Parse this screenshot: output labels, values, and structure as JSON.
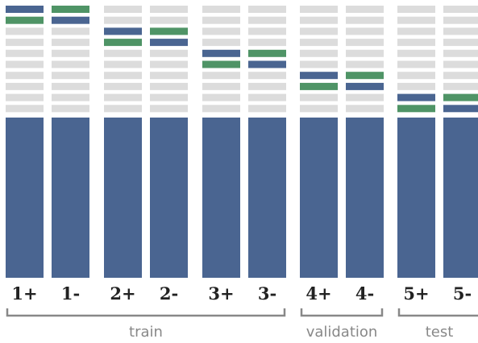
{
  "colors": {
    "block": "#4a6591",
    "green": "#4f9466",
    "empty": "#dcdcdc",
    "label": "#222222",
    "bracket": "#888888"
  },
  "columns": [
    {
      "label": "1+",
      "blue_row": 0,
      "green_row": 1
    },
    {
      "label": "1-",
      "blue_row": 1,
      "green_row": 0
    },
    {
      "label": "2+",
      "blue_row": 2,
      "green_row": 3
    },
    {
      "label": "2-",
      "blue_row": 3,
      "green_row": 2
    },
    {
      "label": "3+",
      "blue_row": 4,
      "green_row": 5
    },
    {
      "label": "3-",
      "blue_row": 5,
      "green_row": 4
    },
    {
      "label": "4+",
      "blue_row": 6,
      "green_row": 7
    },
    {
      "label": "4-",
      "blue_row": 7,
      "green_row": 6
    },
    {
      "label": "5+",
      "blue_row": 8,
      "green_row": 9
    },
    {
      "label": "5-",
      "blue_row": 9,
      "green_row": 8
    }
  ],
  "groups": [
    {
      "label": "train",
      "first_col": 0,
      "last_col": 5
    },
    {
      "label": "validation",
      "first_col": 6,
      "last_col": 7
    },
    {
      "label": "test",
      "first_col": 8,
      "last_col": 9
    }
  ]
}
